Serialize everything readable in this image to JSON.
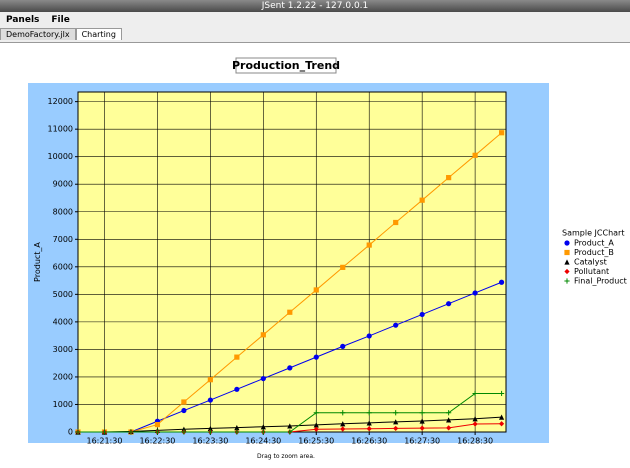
{
  "window_title": "JSent 1.2.22 - 127.0.0.1",
  "menu": [
    "Panels",
    "File"
  ],
  "tabs": [
    "DemoFactory.jlx",
    "Charting"
  ],
  "footer": "Drag to zoom area.",
  "chart_data": {
    "type": "line",
    "title": "Production_Trend",
    "ylabel": "Product_A",
    "legend_title": "Sample JCChart",
    "legend": "right",
    "grid": true,
    "x": [
      "16:21:00",
      "16:21:30",
      "16:22:00",
      "16:22:30",
      "16:23:00",
      "16:23:30",
      "16:24:00",
      "16:24:30",
      "16:25:00",
      "16:25:30",
      "16:26:00",
      "16:26:30",
      "16:27:00",
      "16:27:30",
      "16:28:00",
      "16:28:30",
      "16:29:00"
    ],
    "xlim": [
      "16:21:00",
      "16:29:05"
    ],
    "xticks": [
      "16:21:30",
      "16:22:30",
      "16:23:30",
      "16:24:30",
      "16:25:30",
      "16:26:30",
      "16:27:30",
      "16:28:30"
    ],
    "ylim": [
      0,
      12350
    ],
    "yticks": [
      0,
      1000,
      2000,
      3000,
      4000,
      5000,
      6000,
      7000,
      8000,
      9000,
      10000,
      11000,
      12000
    ],
    "series": [
      {
        "name": "Product_A",
        "color": "#0000ee",
        "marker": "circle",
        "values": [
          0,
          0,
          0,
          390,
          780,
          1160,
          1550,
          1940,
          2330,
          2720,
          3110,
          3490,
          3880,
          4270,
          4660,
          5050,
          5440
        ]
      },
      {
        "name": "Product_B",
        "color": "#ff9900",
        "marker": "square",
        "values": [
          0,
          0,
          0,
          270,
          1090,
          1900,
          2720,
          3530,
          4350,
          5160,
          5980,
          6790,
          7610,
          8420,
          9240,
          10050,
          10870
        ]
      },
      {
        "name": "Catalyst",
        "color": "#000000",
        "marker": "triangle",
        "values": [
          0,
          0,
          20,
          60,
          100,
          130,
          160,
          190,
          220,
          260,
          300,
          330,
          370,
          400,
          440,
          480,
          540
        ]
      },
      {
        "name": "Pollutant",
        "color": "#ee0000",
        "marker": "diamond",
        "values": [
          0,
          0,
          0,
          0,
          0,
          0,
          0,
          0,
          0,
          100,
          110,
          120,
          130,
          140,
          150,
          290,
          300
        ]
      },
      {
        "name": "Final_Product",
        "color": "#008800",
        "marker": "cross",
        "values": [
          0,
          0,
          0,
          0,
          0,
          0,
          0,
          0,
          0,
          700,
          700,
          700,
          700,
          700,
          700,
          1400,
          1400
        ]
      }
    ]
  }
}
